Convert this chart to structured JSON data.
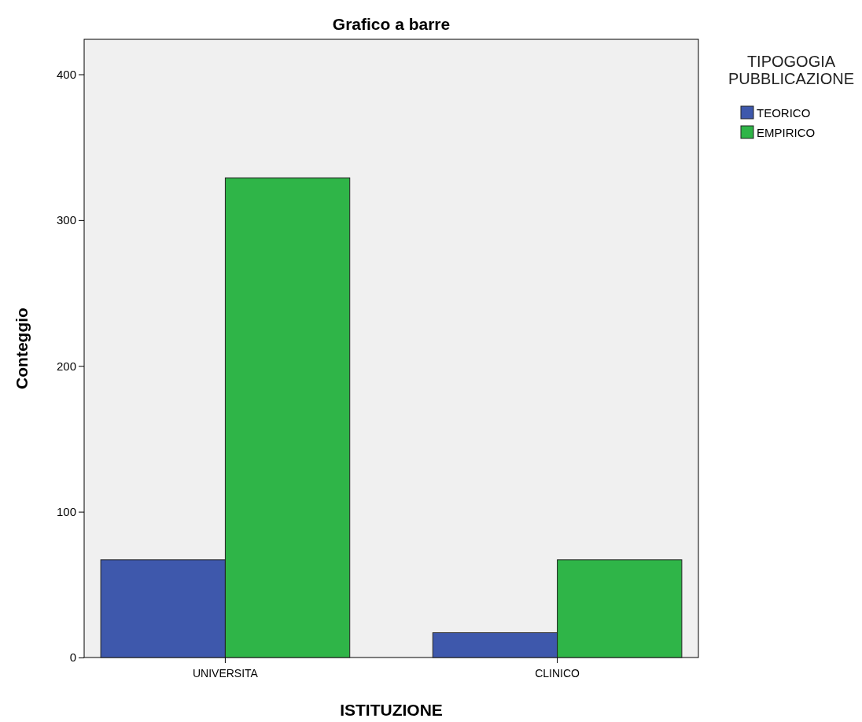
{
  "chart_data": {
    "type": "bar",
    "title": "Grafico a barre",
    "xlabel": "ISTITUZIONE",
    "ylabel": "Conteggio",
    "legend_title": "TIPOGOGIA\nPUBBLICAZIONE",
    "categories": [
      "UNIVERSITA",
      "CLINICO"
    ],
    "series": [
      {
        "name": "TEORICO",
        "color": "#3e58ac",
        "values": [
          67,
          17
        ]
      },
      {
        "name": "EMPIRICO",
        "color": "#2fb548",
        "values": [
          329,
          67
        ]
      }
    ],
    "ylim": [
      0,
      424
    ],
    "yticks": [
      0,
      100,
      200,
      300,
      400
    ],
    "grid": false,
    "legend": "top right"
  }
}
